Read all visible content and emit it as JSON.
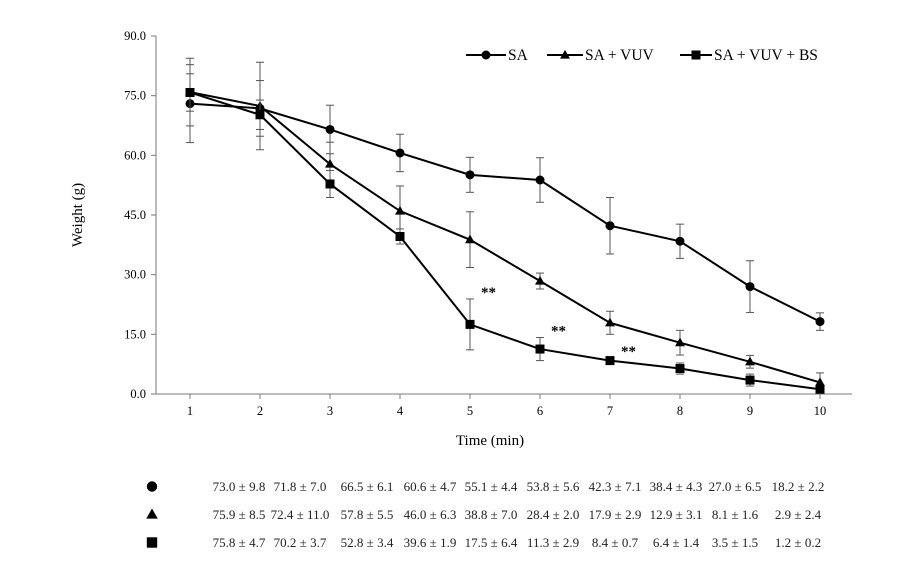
{
  "chart_data": {
    "type": "line",
    "xlabel": "Time (min)",
    "ylabel": "Weight (g)",
    "x": [
      1,
      2,
      3,
      4,
      5,
      6,
      7,
      8,
      9,
      10
    ],
    "x_tick_labels": [
      "1",
      "2",
      "3",
      "4",
      "5",
      "6",
      "7",
      "8",
      "9",
      "10"
    ],
    "ylim": [
      0,
      90
    ],
    "y_tick_labels": [
      "0.0",
      "15.0",
      "30.0",
      "45.0",
      "60.0",
      "75.0",
      "90.0"
    ],
    "grid": false,
    "legend_position": "top-right",
    "series": [
      {
        "name": "SA",
        "marker": "circle",
        "color": "#000000",
        "values": [
          73.0,
          71.8,
          66.5,
          60.6,
          55.1,
          53.8,
          42.3,
          38.4,
          27.0,
          18.2
        ],
        "errors": [
          9.8,
          7.0,
          6.1,
          4.7,
          4.4,
          5.6,
          7.1,
          4.3,
          6.5,
          2.2
        ]
      },
      {
        "name": "SA + VUV",
        "marker": "triangle",
        "color": "#000000",
        "values": [
          75.9,
          72.4,
          57.8,
          46.0,
          38.8,
          28.4,
          17.9,
          12.9,
          8.1,
          2.9
        ],
        "errors": [
          8.5,
          11.0,
          5.5,
          6.3,
          7.0,
          2.0,
          2.9,
          3.1,
          1.6,
          2.4
        ]
      },
      {
        "name": "SA + VUV + BS",
        "marker": "square",
        "color": "#000000",
        "values": [
          75.8,
          70.2,
          52.8,
          39.6,
          17.5,
          11.3,
          8.4,
          6.4,
          3.5,
          1.2
        ],
        "errors": [
          4.7,
          3.7,
          3.4,
          1.9,
          6.4,
          2.9,
          0.7,
          1.4,
          1.5,
          0.2
        ]
      }
    ],
    "annotations": [
      {
        "text": "**",
        "x": 5
      },
      {
        "text": "**",
        "x": 6
      },
      {
        "text": "**",
        "x": 7
      }
    ]
  },
  "table": {
    "rows": [
      {
        "marker": "circle",
        "cells": [
          "73.0 ± 9.8",
          "71.8 ± 7.0",
          "66.5 ± 6.1",
          "60.6 ± 4.7",
          "55.1 ± 4.4",
          "53.8 ± 5.6",
          "42.3 ± 7.1",
          "38.4 ± 4.3",
          "27.0 ± 6.5",
          "18.2 ± 2.2"
        ]
      },
      {
        "marker": "triangle",
        "cells": [
          "75.9 ± 8.5",
          "72.4 ± 11.0",
          "57.8 ± 5.5",
          "46.0 ± 6.3",
          "38.8 ± 7.0",
          "28.4 ± 2.0",
          "17.9 ± 2.9",
          "12.9 ± 3.1",
          "8.1 ± 1.6",
          "2.9 ± 2.4"
        ]
      },
      {
        "marker": "square",
        "cells": [
          "75.8 ± 4.7",
          "70.2 ± 3.7",
          "52.8 ± 3.4",
          "39.6 ± 1.9",
          "17.5 ± 6.4",
          "11.3 ± 2.9",
          "8.4 ± 0.7",
          "6.4 ± 1.4",
          "3.5 ± 1.5",
          "1.2 ± 0.2"
        ]
      }
    ]
  }
}
